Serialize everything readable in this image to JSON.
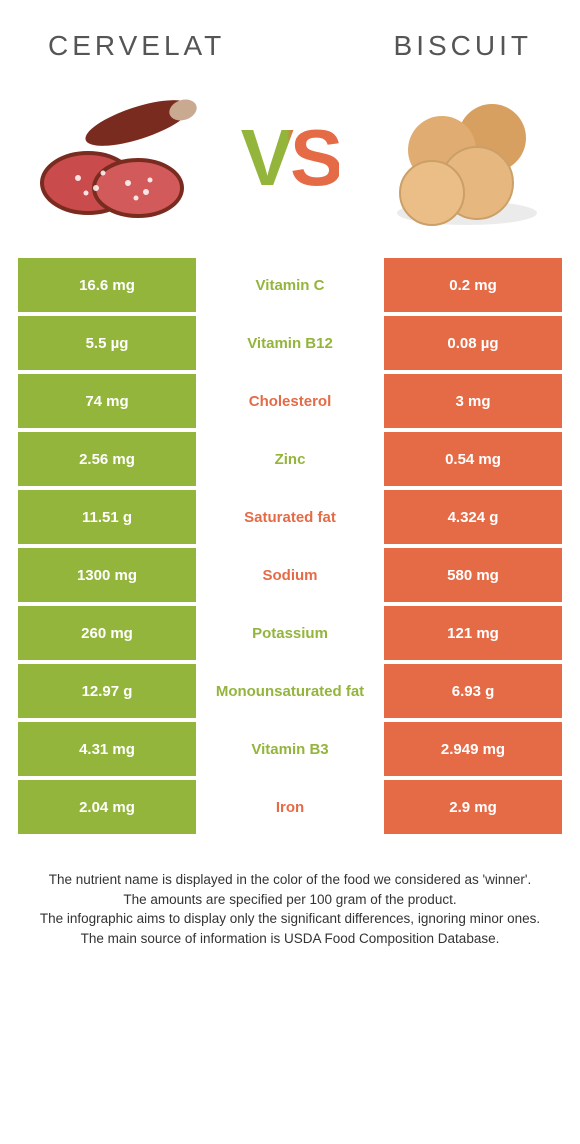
{
  "colors": {
    "left": "#94b53c",
    "right": "#e56b47",
    "bg": "#ffffff",
    "text": "#333333"
  },
  "foods": {
    "left": {
      "title": "Cervelat"
    },
    "right": {
      "title": "Biscuit"
    }
  },
  "vs_label": "VS",
  "rows": [
    {
      "nutrient": "Vitamin C",
      "left": "16.6 mg",
      "right": "0.2 mg",
      "winner": "left"
    },
    {
      "nutrient": "Vitamin B12",
      "left": "5.5 µg",
      "right": "0.08 µg",
      "winner": "left"
    },
    {
      "nutrient": "Cholesterol",
      "left": "74 mg",
      "right": "3 mg",
      "winner": "right"
    },
    {
      "nutrient": "Zinc",
      "left": "2.56 mg",
      "right": "0.54 mg",
      "winner": "left"
    },
    {
      "nutrient": "Saturated fat",
      "left": "11.51 g",
      "right": "4.324 g",
      "winner": "right"
    },
    {
      "nutrient": "Sodium",
      "left": "1300 mg",
      "right": "580 mg",
      "winner": "right"
    },
    {
      "nutrient": "Potassium",
      "left": "260 mg",
      "right": "121 mg",
      "winner": "left"
    },
    {
      "nutrient": "Monounsaturated fat",
      "left": "12.97 g",
      "right": "6.93 g",
      "winner": "left"
    },
    {
      "nutrient": "Vitamin B3",
      "left": "4.31 mg",
      "right": "2.949 mg",
      "winner": "left"
    },
    {
      "nutrient": "Iron",
      "left": "2.04 mg",
      "right": "2.9 mg",
      "winner": "right"
    }
  ],
  "footer_lines": [
    "The nutrient name is displayed in the color of the food we considered as 'winner'.",
    "The amounts are specified per 100 gram of the product.",
    "The infographic aims to display only the significant differences, ignoring minor ones.",
    "The main source of information is USDA Food Composition Database."
  ]
}
